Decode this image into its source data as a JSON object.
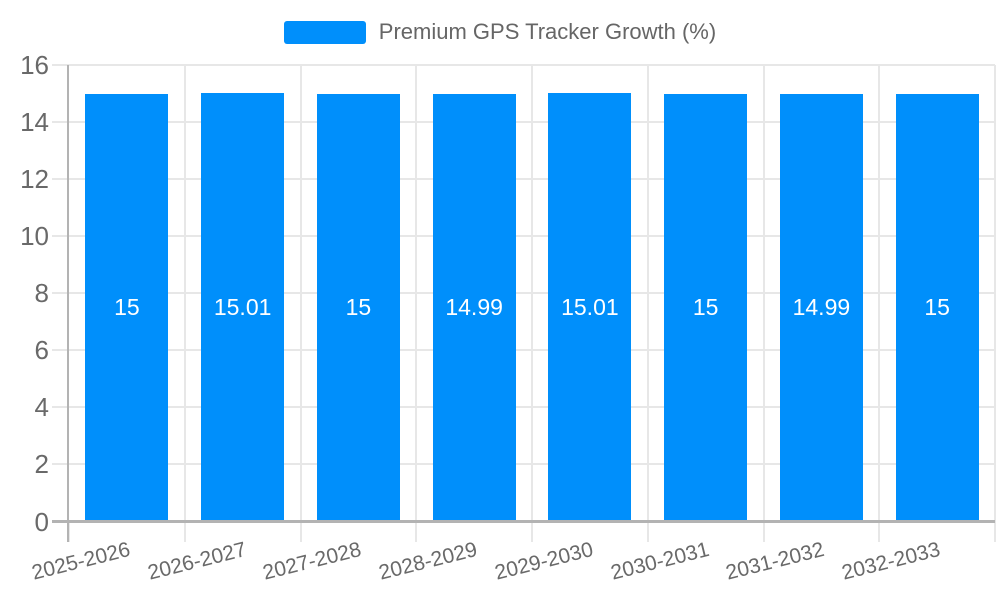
{
  "chart_data": {
    "type": "bar",
    "title": "",
    "xlabel": "",
    "ylabel": "",
    "categories": [
      "2025-2026",
      "2026-2027",
      "2027-2028",
      "2028-2029",
      "2029-2030",
      "2030-2031",
      "2031-2032",
      "2032-2033"
    ],
    "series": [
      {
        "name": "Premium GPS Tracker Growth (%)",
        "color": "#008FFB",
        "values": [
          15,
          15.01,
          15,
          14.99,
          15.01,
          15,
          14.99,
          15
        ],
        "data_labels": [
          "15",
          "15.01",
          "15",
          "14.99",
          "15.01",
          "15",
          "14.99",
          "15"
        ]
      }
    ],
    "ylim": [
      0,
      16
    ],
    "yticks": [
      0,
      2,
      4,
      6,
      8,
      10,
      12,
      14,
      16
    ],
    "grid": true,
    "legend_position": "top",
    "data_label_position": "center"
  },
  "style": {
    "bar_color": "#008FFB",
    "grid_color": "#e7e7e7",
    "axis_line_color": "#b3b3b3",
    "axis_label_color": "#696969",
    "legend_text_color": "#666666",
    "data_label_color": "#ffffff",
    "background": "#ffffff"
  }
}
